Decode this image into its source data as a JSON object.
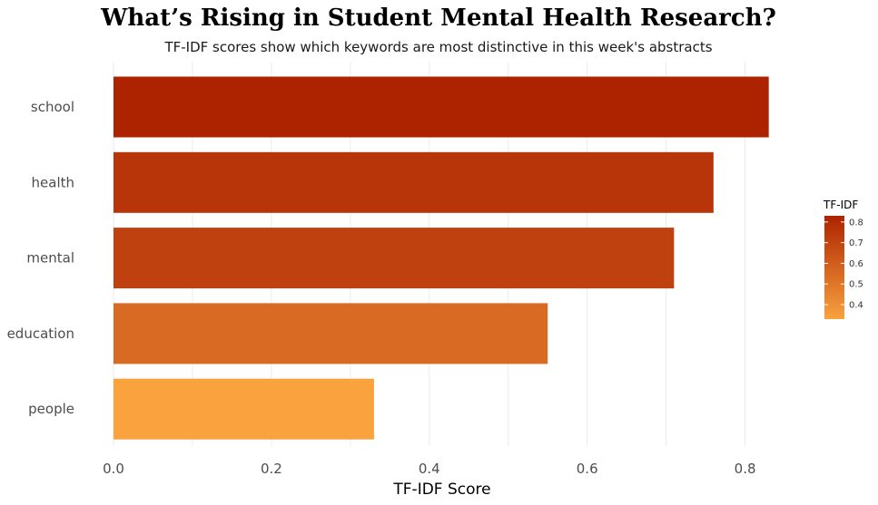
{
  "chart_data": {
    "type": "bar",
    "orientation": "horizontal",
    "title": "What’s Rising in Student Mental Health Research?",
    "subtitle": "TF-IDF scores show which keywords are most distinctive in this week's abstracts",
    "xlabel": "TF-IDF Score",
    "ylabel": "",
    "categories": [
      "school",
      "health",
      "mental",
      "education",
      "people"
    ],
    "values": [
      0.83,
      0.76,
      0.71,
      0.55,
      0.33
    ],
    "xlim": [
      0,
      0.88
    ],
    "x_ticks": [
      "0.0",
      "0.2",
      "0.4",
      "0.6",
      "0.8"
    ],
    "grid": true,
    "legend": {
      "title": "TF-IDF",
      "placement": "right",
      "type": "colorbar",
      "range": [
        0.33,
        0.83
      ],
      "ticks": [
        "0.4",
        "0.5",
        "0.6",
        "0.7",
        "0.8"
      ],
      "color_low": "#f9a23e",
      "color_high": "#ad2300"
    }
  }
}
